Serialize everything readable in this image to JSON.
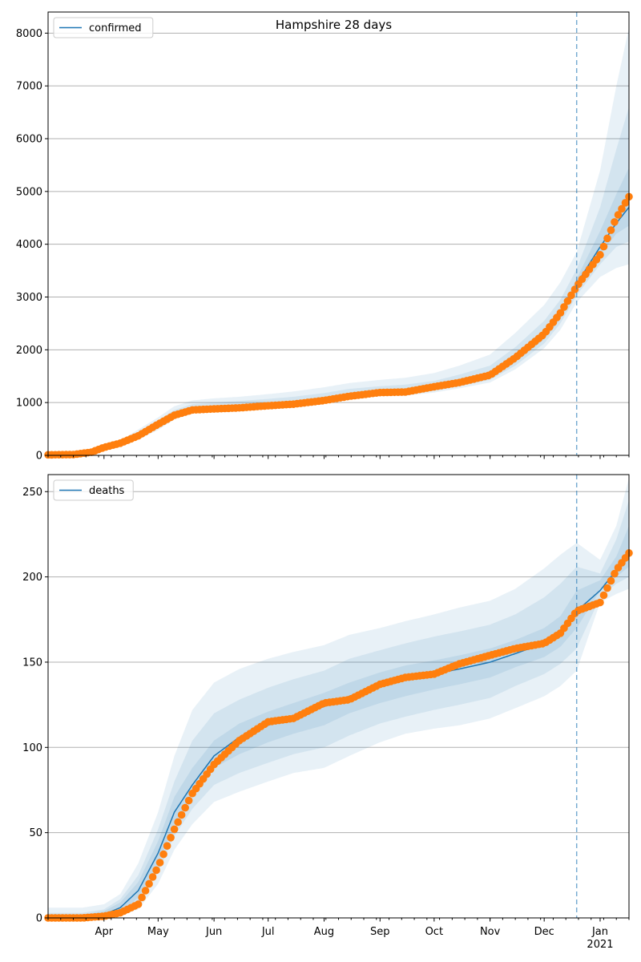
{
  "chart_data": [
    {
      "type": "line",
      "title": "Hampshire 28 days",
      "xlabel": "",
      "ylabel": "",
      "ylim": [
        0,
        8400
      ],
      "yticks": [
        0,
        1000,
        2000,
        3000,
        4000,
        5000,
        6000,
        7000,
        8000
      ],
      "grid": "horizontal",
      "legend": {
        "position": "top-left",
        "entries": [
          "confirmed"
        ]
      },
      "forecast_start": "2020-12-19",
      "x_dates": [
        "2020-03-01",
        "2020-03-15",
        "2020-03-25",
        "2020-04-01",
        "2020-04-10",
        "2020-04-20",
        "2020-05-01",
        "2020-05-10",
        "2020-05-20",
        "2020-06-01",
        "2020-06-15",
        "2020-07-01",
        "2020-07-15",
        "2020-08-01",
        "2020-08-15",
        "2020-09-01",
        "2020-09-15",
        "2020-10-01",
        "2020-10-15",
        "2020-11-01",
        "2020-11-15",
        "2020-12-01",
        "2020-12-10",
        "2020-12-19",
        "2021-01-01",
        "2021-01-10",
        "2021-01-17"
      ],
      "series": [
        {
          "name": "confirmed",
          "kind": "fit",
          "values": [
            5,
            10,
            60,
            140,
            220,
            380,
            580,
            760,
            860,
            880,
            900,
            940,
            960,
            1040,
            1120,
            1180,
            1190,
            1260,
            1360,
            1500,
            1800,
            2260,
            2650,
            3250,
            3950,
            4400,
            4700
          ]
        },
        {
          "name": "",
          "kind": "observed",
          "values": [
            10,
            15,
            60,
            150,
            230,
            370,
            590,
            760,
            860,
            880,
            900,
            940,
            970,
            1040,
            1120,
            1190,
            1200,
            1300,
            1380,
            1520,
            1850,
            2300,
            2700,
            3200,
            3800,
            4500,
            4900
          ]
        }
      ],
      "bands": [
        {
          "lower": [
            0,
            0,
            30,
            110,
            170,
            300,
            480,
            680,
            800,
            840,
            860,
            890,
            920,
            990,
            1070,
            1130,
            1130,
            1190,
            1270,
            1380,
            1630,
            2030,
            2380,
            2900,
            3380,
            3550,
            3620
          ],
          "upper": [
            30,
            40,
            100,
            190,
            280,
            490,
            720,
            930,
            1040,
            1080,
            1110,
            1160,
            1210,
            1290,
            1370,
            1430,
            1470,
            1560,
            1700,
            1910,
            2320,
            2850,
            3280,
            3850,
            5400,
            7000,
            8100
          ]
        },
        {
          "lower": [
            0,
            0,
            40,
            120,
            190,
            330,
            520,
            720,
            830,
            860,
            880,
            910,
            940,
            1010,
            1090,
            1150,
            1160,
            1220,
            1310,
            1430,
            1700,
            2120,
            2500,
            3030,
            3620,
            3950,
            4050
          ],
          "upper": [
            20,
            30,
            85,
            170,
            260,
            440,
            660,
            860,
            970,
            1000,
            1030,
            1070,
            1110,
            1180,
            1260,
            1310,
            1340,
            1410,
            1530,
            1700,
            2050,
            2550,
            2950,
            3530,
            4700,
            5800,
            6600
          ]
        },
        {
          "lower": [
            0,
            0,
            50,
            130,
            205,
            355,
            550,
            740,
            845,
            870,
            890,
            925,
            950,
            1025,
            1105,
            1165,
            1175,
            1240,
            1340,
            1470,
            1760,
            2200,
            2580,
            3150,
            3800,
            4200,
            4350
          ],
          "upper": [
            15,
            20,
            70,
            150,
            235,
            405,
            610,
            790,
            890,
            910,
            930,
            965,
            990,
            1070,
            1150,
            1210,
            1230,
            1300,
            1400,
            1560,
            1880,
            2340,
            2730,
            3350,
            4250,
            4950,
            5450
          ]
        }
      ]
    },
    {
      "type": "line",
      "title": "",
      "xlabel": "",
      "ylabel": "",
      "ylim": [
        0,
        260
      ],
      "yticks": [
        0,
        50,
        100,
        150,
        200,
        250
      ],
      "grid": "horizontal",
      "legend": {
        "position": "top-left",
        "entries": [
          "deaths"
        ]
      },
      "forecast_start": "2020-12-19",
      "x_tick_labels": [
        "Apr",
        "May",
        "Jun",
        "Jul",
        "Aug",
        "Sep",
        "Oct",
        "Nov",
        "Dec",
        "Jan\n2021"
      ],
      "x_tick_dates": [
        "2020-04-01",
        "2020-05-01",
        "2020-06-01",
        "2020-07-01",
        "2020-08-01",
        "2020-09-01",
        "2020-10-01",
        "2020-11-01",
        "2020-12-01",
        "2021-01-01"
      ],
      "x_dates": [
        "2020-03-01",
        "2020-03-20",
        "2020-04-01",
        "2020-04-10",
        "2020-04-20",
        "2020-05-01",
        "2020-05-10",
        "2020-05-20",
        "2020-06-01",
        "2020-06-15",
        "2020-07-01",
        "2020-07-15",
        "2020-08-01",
        "2020-08-15",
        "2020-09-01",
        "2020-09-15",
        "2020-10-01",
        "2020-10-15",
        "2020-11-01",
        "2020-11-15",
        "2020-12-01",
        "2020-12-10",
        "2020-12-19",
        "2021-01-01",
        "2021-01-10",
        "2021-01-17"
      ],
      "series": [
        {
          "name": "deaths",
          "kind": "fit",
          "values": [
            0,
            0,
            2,
            6,
            16,
            38,
            62,
            78,
            95,
            106,
            113,
            118,
            124,
            130,
            136,
            140,
            143,
            146,
            150,
            155,
            161,
            167,
            180,
            192,
            204,
            213
          ]
        },
        {
          "name": "",
          "kind": "observed",
          "values": [
            0,
            0,
            1,
            3,
            8,
            30,
            52,
            73,
            90,
            104,
            115,
            117,
            126,
            128,
            137,
            141,
            143,
            149,
            154,
            158,
            161,
            167,
            180,
            185,
            204,
            214
          ]
        }
      ],
      "bands": [
        {
          "lower": [
            0,
            0,
            0,
            1,
            5,
            20,
            40,
            55,
            68,
            74,
            80,
            85,
            88,
            95,
            103,
            108,
            111,
            113,
            117,
            123,
            130,
            136,
            145,
            185,
            190,
            193
          ],
          "upper": [
            6,
            6,
            8,
            14,
            32,
            62,
            95,
            122,
            138,
            146,
            152,
            156,
            160,
            166,
            170,
            174,
            178,
            182,
            186,
            193,
            205,
            213,
            220,
            210,
            230,
            258
          ]
        },
        {
          "lower": [
            0,
            0,
            0,
            2,
            9,
            27,
            48,
            64,
            78,
            85,
            91,
            96,
            100,
            107,
            114,
            118,
            122,
            125,
            129,
            136,
            143,
            149,
            158,
            188,
            196,
            200
          ],
          "upper": [
            3,
            3,
            5,
            11,
            25,
            52,
            80,
            104,
            120,
            128,
            135,
            140,
            145,
            152,
            157,
            161,
            165,
            168,
            172,
            178,
            188,
            196,
            206,
            202,
            222,
            245
          ]
        },
        {
          "lower": [
            0,
            0,
            0,
            3,
            12,
            32,
            55,
            72,
            88,
            96,
            103,
            108,
            113,
            120,
            126,
            130,
            134,
            137,
            141,
            147,
            153,
            159,
            170,
            192,
            200,
            206
          ],
          "upper": [
            2,
            2,
            4,
            9,
            21,
            45,
            71,
            88,
            104,
            114,
            121,
            126,
            132,
            138,
            144,
            148,
            151,
            154,
            158,
            163,
            170,
            177,
            192,
            198,
            212,
            230
          ]
        }
      ]
    }
  ]
}
